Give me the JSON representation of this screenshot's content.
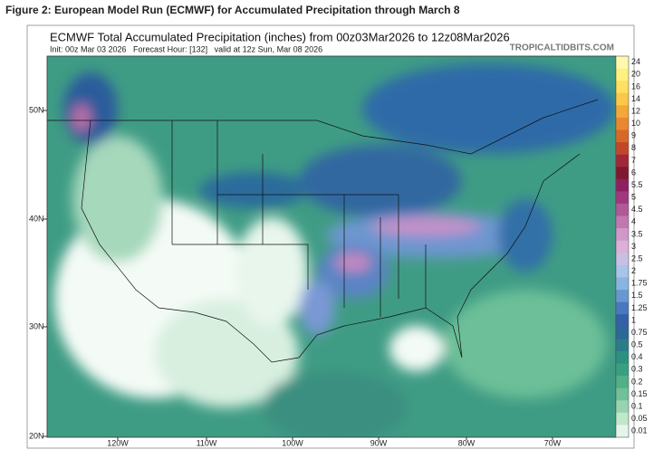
{
  "caption": "Figure 2: European Model Run (ECMWF) for Accumulated Precipitation through March 8",
  "map": {
    "title": "ECMWF Total Accumulated Precipitation (inches) from 00z03Mar2026 to 12z08Mar2026",
    "subtitle": "Init: 00z Mar 03 2026   Forecast Hour: [132]   valid at 12z Sun, Mar 08 2026",
    "credit": "TROPICALTIDBITS.COM",
    "latitude_labels": [
      "50N",
      "40N",
      "30N",
      "20N"
    ],
    "longitude_labels": [
      "120W",
      "110W",
      "100W",
      "90W",
      "80W",
      "70W"
    ],
    "colorbar": {
      "labels": [
        "24",
        "20",
        "16",
        "14",
        "12",
        "10",
        "9",
        "8",
        "7",
        "6",
        "5.5",
        "5",
        "4.5",
        "4",
        "3.5",
        "3",
        "2.5",
        "2",
        "1.75",
        "1.5",
        "1.25",
        "1",
        "0.75",
        "0.5",
        "0.4",
        "0.3",
        "0.2",
        "0.15",
        "0.1",
        "0.05",
        "0.01"
      ],
      "colors": [
        "#fff9b0",
        "#fff080",
        "#ffe060",
        "#fcc848",
        "#f4a838",
        "#e88830",
        "#d86828",
        "#c04828",
        "#a02838",
        "#801830",
        "#8c2060",
        "#a03880",
        "#b05898",
        "#c078b0",
        "#d098c8",
        "#dcb0d8",
        "#c8c0e4",
        "#a8c4e8",
        "#88b4e0",
        "#6898d0",
        "#4878c0",
        "#3460a8",
        "#2c6898",
        "#2a7c88",
        "#2c9080",
        "#38a080",
        "#50b088",
        "#70c098",
        "#98d4b0",
        "#c0e8cc",
        "#e4f6ea"
      ]
    }
  }
}
